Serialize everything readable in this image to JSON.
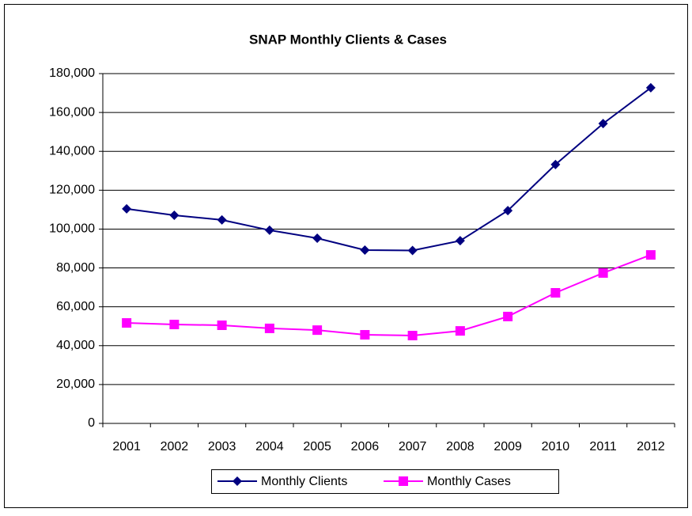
{
  "chart_data": {
    "type": "line",
    "title": "SNAP Monthly Clients & Cases",
    "categories": [
      "2001",
      "2002",
      "2003",
      "2004",
      "2005",
      "2006",
      "2007",
      "2008",
      "2009",
      "2010",
      "2011",
      "2012"
    ],
    "series": [
      {
        "name": "Monthly Clients",
        "color": "#000080",
        "marker": "diamond",
        "values": [
          110400,
          107100,
          104700,
          99400,
          95300,
          89200,
          89000,
          94000,
          109500,
          133200,
          154300,
          172700
        ]
      },
      {
        "name": "Monthly Cases",
        "color": "#ff00ff",
        "marker": "square",
        "values": [
          51700,
          50900,
          50500,
          48900,
          48000,
          45600,
          45200,
          47600,
          55000,
          67200,
          77400,
          86700
        ]
      }
    ],
    "ylim": [
      0,
      180000
    ],
    "yticks": [
      0,
      {
        "value": 20000,
        "label": "20,000"
      },
      {
        "value": 40000,
        "label": "40,000"
      },
      {
        "value": 60000,
        "label": "60,000"
      },
      {
        "value": 80000,
        "label": "80,000"
      },
      {
        "value": 100000,
        "label": "100,000"
      },
      {
        "value": 120000,
        "label": "120,000"
      },
      {
        "value": 140000,
        "label": "140,000"
      },
      {
        "value": 160000,
        "label": "160,000"
      },
      {
        "value": 180000,
        "label": "180,000"
      }
    ],
    "grid": true,
    "legend": "bottom"
  }
}
